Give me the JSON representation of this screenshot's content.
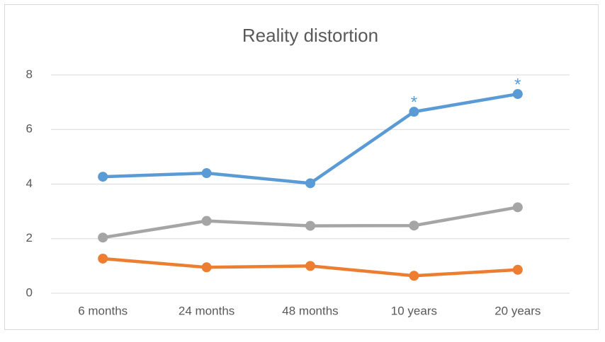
{
  "chart_data": {
    "type": "line",
    "title": "Reality distortion",
    "categories": [
      "6 months",
      "24 months",
      "48 months",
      "10 years",
      "20 years"
    ],
    "series": [
      {
        "color": "#5b9bd5",
        "values": [
          4.27,
          4.4,
          4.03,
          6.65,
          7.3
        ]
      },
      {
        "color": "#a5a5a5",
        "values": [
          2.04,
          2.65,
          2.47,
          2.48,
          3.15
        ]
      },
      {
        "color": "#ed7d31",
        "values": [
          1.27,
          0.95,
          1.0,
          0.64,
          0.86
        ]
      }
    ],
    "annotations": [
      {
        "text": "*",
        "category": "10 years"
      },
      {
        "text": "*",
        "category": "20 years"
      }
    ],
    "ylim": [
      0,
      8
    ],
    "yticks": [
      0,
      2,
      4,
      6,
      8
    ],
    "grid": true
  }
}
